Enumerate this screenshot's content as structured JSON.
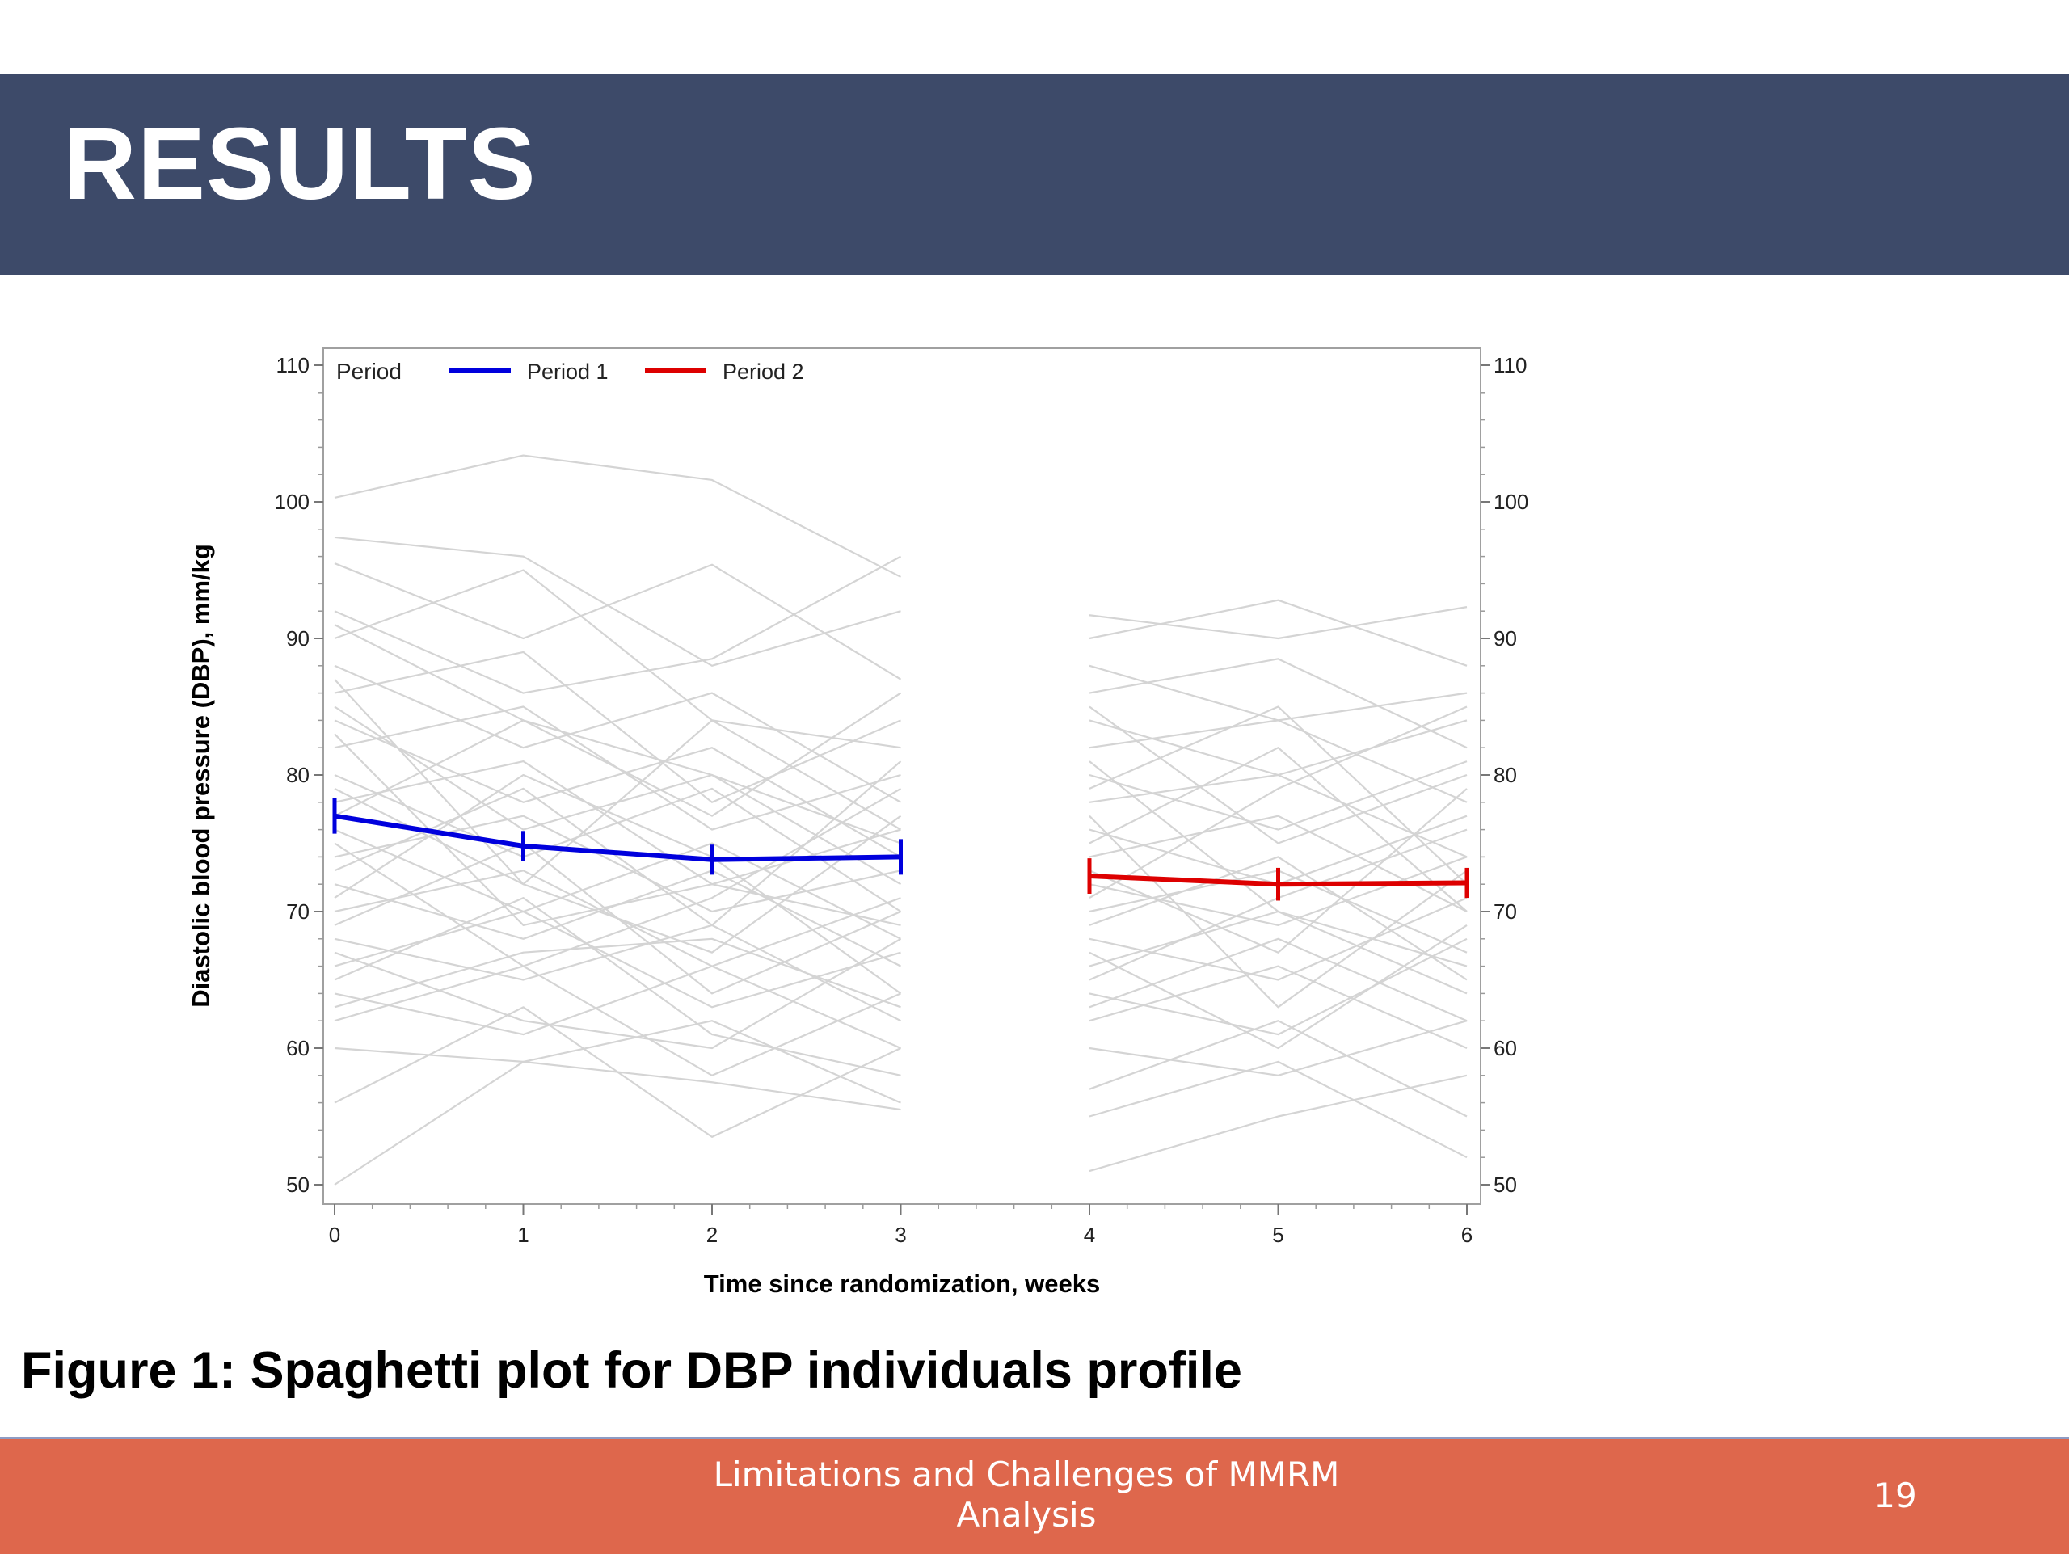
{
  "slide": {
    "title": "RESULTS",
    "caption": "Figure 1: Spaghetti plot for DBP individuals profile",
    "footer_title": "Limitations and Challenges of MMRM Analysis",
    "page_number": "19"
  },
  "colors": {
    "header_bg": "#3d4a69",
    "footer_bg": "#de674c",
    "period1": "#0000dd",
    "period2": "#dd0000",
    "individual": "#d4d4d4"
  },
  "chart_data": {
    "type": "line",
    "xlabel": "Time since randomization, weeks",
    "ylabel": "Diastolic blood pressure (DBP), mm/kg",
    "xlim": [
      0,
      6
    ],
    "ylim": [
      50,
      110
    ],
    "x_ticks": [
      0,
      1,
      2,
      3,
      4,
      5,
      6
    ],
    "y_ticks": [
      50,
      60,
      70,
      80,
      90,
      100,
      110
    ],
    "grid": false,
    "legend": {
      "title": "Period",
      "position": "top-left"
    },
    "series": [
      {
        "name": "Period 1",
        "color": "#0000dd",
        "x": [
          0,
          1,
          2,
          3
        ],
        "y": [
          77.0,
          74.8,
          73.8,
          74.0
        ],
        "err": [
          1.3,
          1.1,
          1.1,
          1.3
        ]
      },
      {
        "name": "Period 2",
        "color": "#dd0000",
        "x": [
          4,
          5,
          6
        ],
        "y": [
          72.6,
          72.0,
          72.1
        ],
        "err": [
          1.3,
          1.2,
          1.1
        ]
      }
    ],
    "individual_profiles": [
      {
        "x": [
          0,
          1,
          2,
          3
        ],
        "y": [
          100.3,
          103.4,
          101.6,
          94.5
        ]
      },
      {
        "x": [
          0,
          1,
          2,
          3
        ],
        "y": [
          97.4,
          96.0,
          88.0,
          92.0
        ]
      },
      {
        "x": [
          0,
          1,
          2,
          3
        ],
        "y": [
          95.5,
          90.0,
          95.4,
          87.0
        ]
      },
      {
        "x": [
          0,
          1,
          2,
          3
        ],
        "y": [
          92.0,
          86.0,
          88.5,
          96.0
        ]
      },
      {
        "x": [
          0,
          1,
          2,
          3
        ],
        "y": [
          90.0,
          95.0,
          84.0,
          82.0
        ]
      },
      {
        "x": [
          0,
          1,
          2,
          3
        ],
        "y": [
          88.0,
          82.0,
          86.0,
          78.0
        ]
      },
      {
        "x": [
          0,
          1,
          2,
          3
        ],
        "y": [
          86.0,
          89.0,
          78.0,
          84.0
        ]
      },
      {
        "x": [
          0,
          1,
          2,
          3
        ],
        "y": [
          84.0,
          78.0,
          82.0,
          74.0
        ]
      },
      {
        "x": [
          0,
          1,
          2,
          3
        ],
        "y": [
          82.0,
          85.0,
          76.0,
          80.0
        ]
      },
      {
        "x": [
          0,
          1,
          2,
          3
        ],
        "y": [
          80.0,
          74.0,
          79.0,
          70.0
        ]
      },
      {
        "x": [
          0,
          1,
          2,
          3
        ],
        "y": [
          78.0,
          81.0,
          72.0,
          76.0
        ]
      },
      {
        "x": [
          0,
          1,
          2,
          3
        ],
        "y": [
          76.0,
          70.0,
          75.0,
          68.0
        ]
      },
      {
        "x": [
          0,
          1,
          2,
          3
        ],
        "y": [
          74.0,
          77.0,
          70.0,
          73.0
        ]
      },
      {
        "x": [
          0,
          1,
          2,
          3
        ],
        "y": [
          72.0,
          68.0,
          73.0,
          66.0
        ]
      },
      {
        "x": [
          0,
          1,
          2,
          3
        ],
        "y": [
          70.0,
          73.0,
          66.0,
          71.0
        ]
      },
      {
        "x": [
          0,
          1,
          2,
          3
        ],
        "y": [
          68.0,
          65.0,
          69.0,
          62.0
        ]
      },
      {
        "x": [
          0,
          1,
          2,
          3
        ],
        "y": [
          66.0,
          70.0,
          63.0,
          67.0
        ]
      },
      {
        "x": [
          0,
          1,
          2,
          3
        ],
        "y": [
          64.0,
          61.0,
          66.0,
          60.0
        ]
      },
      {
        "x": [
          0,
          1,
          2,
          3
        ],
        "y": [
          62.0,
          66.0,
          58.0,
          64.0
        ]
      },
      {
        "x": [
          0,
          1,
          2,
          3
        ],
        "y": [
          60.0,
          59.0,
          62.0,
          56.0
        ]
      },
      {
        "x": [
          0,
          1,
          2,
          3
        ],
        "y": [
          56.0,
          63.0,
          53.5,
          60.0
        ]
      },
      {
        "x": [
          0,
          1,
          2,
          3
        ],
        "y": [
          50.0,
          59.0,
          57.5,
          55.5
        ]
      },
      {
        "x": [
          0,
          1,
          2,
          3
        ],
        "y": [
          79.0,
          72.0,
          84.0,
          76.0
        ]
      },
      {
        "x": [
          0,
          1,
          2,
          3
        ],
        "y": [
          73.0,
          79.0,
          69.0,
          81.0
        ]
      },
      {
        "x": [
          0,
          1,
          2,
          3
        ],
        "y": [
          85.0,
          76.0,
          80.0,
          72.0
        ]
      },
      {
        "x": [
          0,
          1,
          2,
          3
        ],
        "y": [
          69.0,
          75.0,
          64.0,
          70.0
        ]
      },
      {
        "x": [
          0,
          1,
          2,
          3
        ],
        "y": [
          91.0,
          84.0,
          77.0,
          86.0
        ]
      },
      {
        "x": [
          0,
          1,
          2,
          3
        ],
        "y": [
          65.0,
          71.0,
          61.0,
          58.0
        ]
      },
      {
        "x": [
          0,
          1,
          2,
          3
        ],
        "y": [
          75.0,
          66.0,
          71.0,
          79.0
        ]
      },
      {
        "x": [
          0,
          1,
          2,
          3
        ],
        "y": [
          71.0,
          80.0,
          74.0,
          64.0
        ]
      },
      {
        "x": [
          0,
          1,
          2,
          3
        ],
        "y": [
          83.0,
          69.0,
          72.0,
          69.0
        ]
      },
      {
        "x": [
          0,
          1,
          2,
          3
        ],
        "y": [
          77.0,
          84.0,
          80.0,
          75.0
        ]
      },
      {
        "x": [
          0,
          1,
          2,
          3
        ],
        "y": [
          63.0,
          67.0,
          68.0,
          63.0
        ]
      },
      {
        "x": [
          0,
          1,
          2,
          3
        ],
        "y": [
          87.0,
          72.0,
          67.0,
          77.0
        ]
      },
      {
        "x": [
          0,
          1,
          2,
          3
        ],
        "y": [
          67.0,
          62.0,
          60.0,
          68.0
        ]
      },
      {
        "x": [
          4,
          5,
          6
        ],
        "y": [
          91.7,
          90.0,
          92.3
        ]
      },
      {
        "x": [
          4,
          5,
          6
        ],
        "y": [
          90.0,
          92.8,
          88.0
        ]
      },
      {
        "x": [
          4,
          5,
          6
        ],
        "y": [
          88.0,
          84.0,
          86.0
        ]
      },
      {
        "x": [
          4,
          5,
          6
        ],
        "y": [
          86.0,
          88.5,
          82.0
        ]
      },
      {
        "x": [
          4,
          5,
          6
        ],
        "y": [
          84.0,
          80.0,
          84.0
        ]
      },
      {
        "x": [
          4,
          5,
          6
        ],
        "y": [
          82.0,
          84.0,
          78.0
        ]
      },
      {
        "x": [
          4,
          5,
          6
        ],
        "y": [
          80.0,
          76.0,
          81.0
        ]
      },
      {
        "x": [
          4,
          5,
          6
        ],
        "y": [
          78.0,
          80.0,
          74.0
        ]
      },
      {
        "x": [
          4,
          5,
          6
        ],
        "y": [
          76.0,
          72.0,
          77.0
        ]
      },
      {
        "x": [
          4,
          5,
          6
        ],
        "y": [
          74.0,
          77.0,
          70.0
        ]
      },
      {
        "x": [
          4,
          5,
          6
        ],
        "y": [
          72.0,
          69.0,
          74.0
        ]
      },
      {
        "x": [
          4,
          5,
          6
        ],
        "y": [
          70.0,
          73.0,
          67.0
        ]
      },
      {
        "x": [
          4,
          5,
          6
        ],
        "y": [
          68.0,
          65.0,
          71.0
        ]
      },
      {
        "x": [
          4,
          5,
          6
        ],
        "y": [
          66.0,
          70.0,
          64.0
        ]
      },
      {
        "x": [
          4,
          5,
          6
        ],
        "y": [
          64.0,
          61.0,
          68.0
        ]
      },
      {
        "x": [
          4,
          5,
          6
        ],
        "y": [
          62.0,
          66.0,
          60.0
        ]
      },
      {
        "x": [
          4,
          5,
          6
        ],
        "y": [
          60.0,
          58.0,
          62.0
        ]
      },
      {
        "x": [
          4,
          5,
          6
        ],
        "y": [
          57.0,
          62.0,
          55.0
        ]
      },
      {
        "x": [
          4,
          5,
          6
        ],
        "y": [
          55.0,
          59.0,
          52.0
        ]
      },
      {
        "x": [
          4,
          5,
          6
        ],
        "y": [
          51.0,
          55.0,
          58.0
        ]
      },
      {
        "x": [
          4,
          5,
          6
        ],
        "y": [
          79.0,
          85.0,
          72.0
        ]
      },
      {
        "x": [
          4,
          5,
          6
        ],
        "y": [
          73.0,
          67.0,
          79.0
        ]
      },
      {
        "x": [
          4,
          5,
          6
        ],
        "y": [
          85.0,
          75.0,
          80.0
        ]
      },
      {
        "x": [
          4,
          5,
          6
        ],
        "y": [
          69.0,
          74.0,
          65.0
        ]
      },
      {
        "x": [
          4,
          5,
          6
        ],
        "y": [
          77.0,
          63.0,
          73.0
        ]
      },
      {
        "x": [
          4,
          5,
          6
        ],
        "y": [
          65.0,
          71.0,
          76.0
        ]
      },
      {
        "x": [
          4,
          5,
          6
        ],
        "y": [
          81.0,
          70.0,
          66.0
        ]
      },
      {
        "x": [
          4,
          5,
          6
        ],
        "y": [
          71.0,
          79.0,
          85.0
        ]
      },
      {
        "x": [
          4,
          5,
          6
        ],
        "y": [
          63.0,
          68.0,
          62.0
        ]
      },
      {
        "x": [
          4,
          5,
          6
        ],
        "y": [
          75.0,
          82.0,
          70.0
        ]
      },
      {
        "x": [
          4,
          5,
          6
        ],
        "y": [
          67.0,
          60.0,
          69.0
        ]
      }
    ]
  }
}
